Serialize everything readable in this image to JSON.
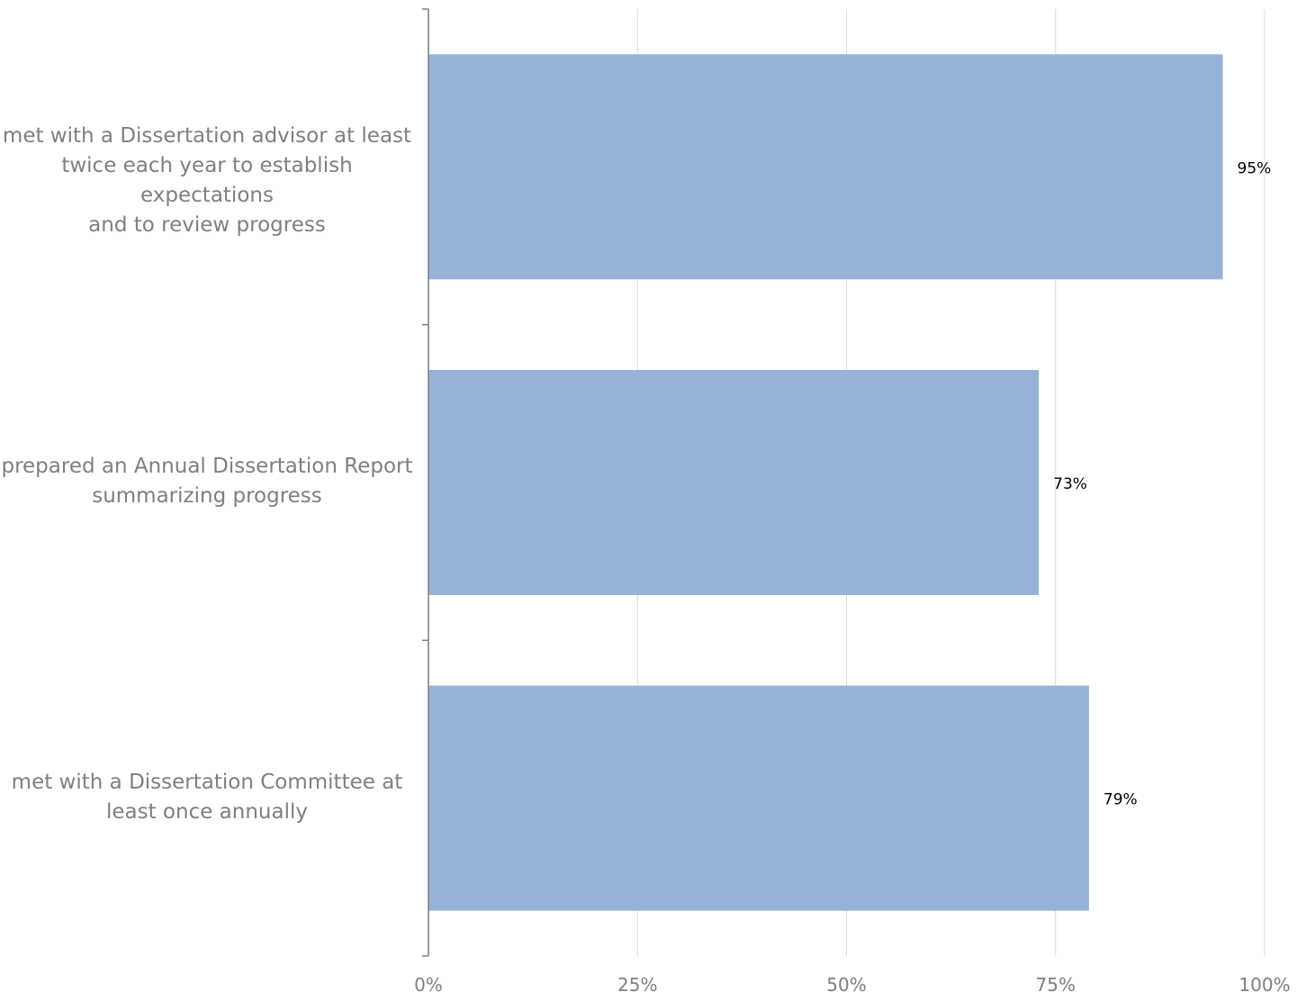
{
  "chart_data": {
    "type": "bar",
    "orientation": "horizontal",
    "categories": [
      "met with a Dissertation advisor at least twice each year to establish expectations and to review progress",
      "prepared an Annual Dissertation Report summarizing progress",
      "met with a Dissertation Committee at least once annually"
    ],
    "category_lines": [
      [
        "met with a Dissertation advisor at least",
        "twice each year to establish expectations",
        "and to review progress"
      ],
      [
        "prepared an Annual Dissertation Report",
        "summarizing progress"
      ],
      [
        "met with a Dissertation Committee at",
        "least once annually"
      ]
    ],
    "values": [
      95,
      73,
      79
    ],
    "data_labels": [
      "95%",
      "73%",
      "79%"
    ],
    "x_ticks": [
      0,
      25,
      50,
      75,
      100
    ],
    "x_tick_labels": [
      "0%",
      "25%",
      "50%",
      "75%",
      "100%"
    ],
    "xlim": [
      0,
      100
    ],
    "grid": true,
    "legend": "none",
    "colors": {
      "bar": "#96B3D7",
      "grid": "#d9d9d9",
      "axis": "#7f7f7f",
      "label_text": "#7f7f7f",
      "data_label_text": "#000000"
    }
  }
}
